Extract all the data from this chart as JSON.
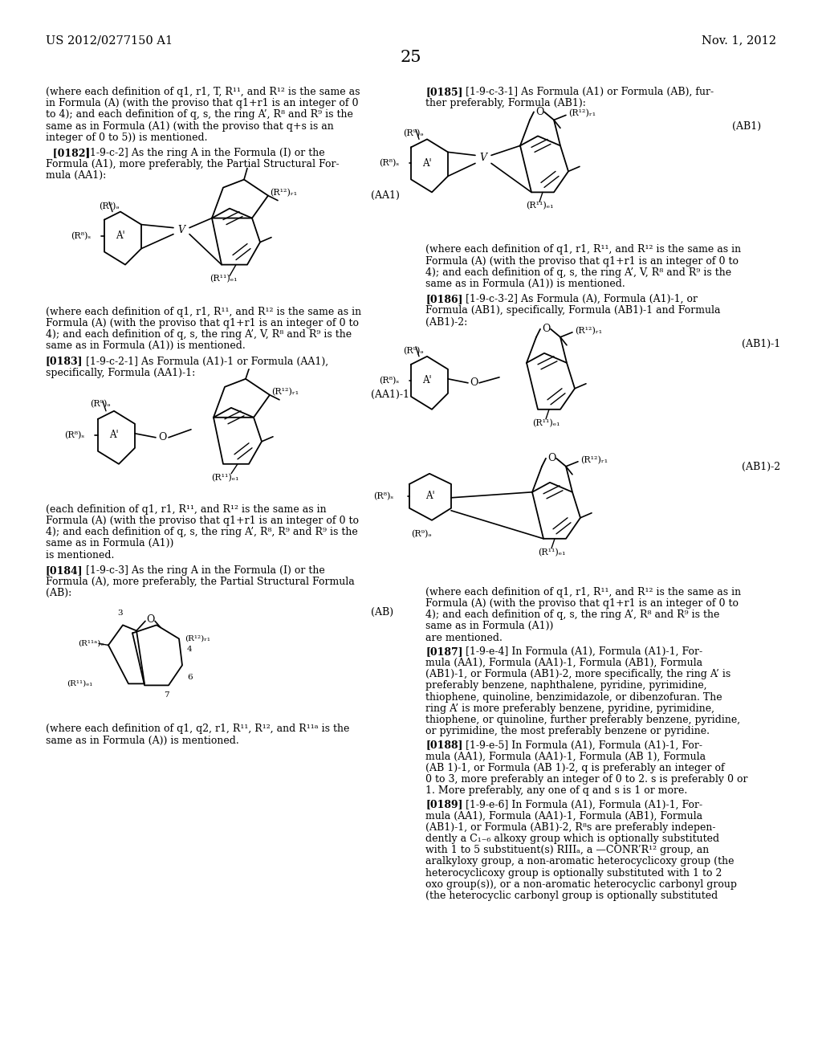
{
  "header_left": "US 2012/0277150 A1",
  "header_right": "Nov. 1, 2012",
  "page_num": "25",
  "bg": "#ffffff"
}
